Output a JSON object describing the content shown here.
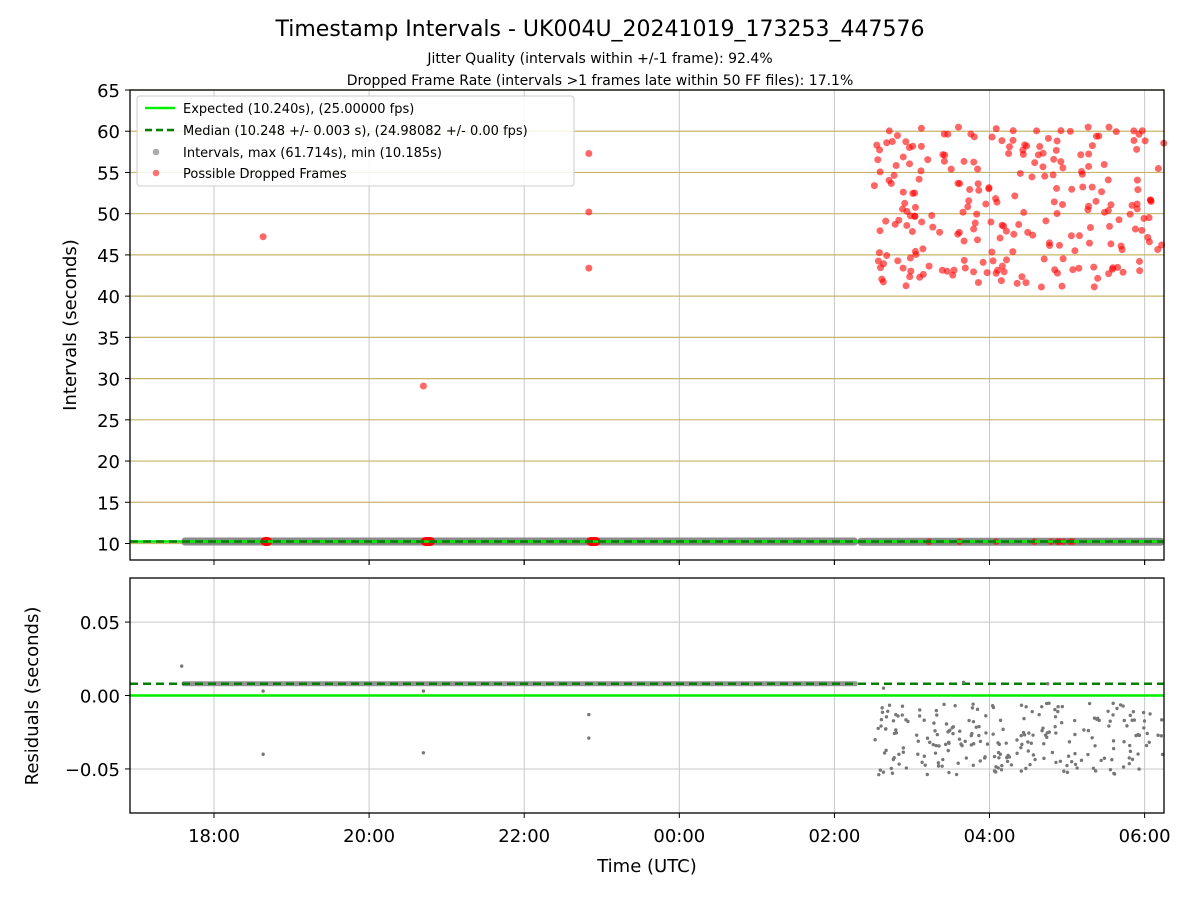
{
  "chart_data": [
    {
      "type": "scatter",
      "title": "Timestamp Intervals - UK004U_20241019_173253_447576",
      "subtitle_lines": [
        "Jitter Quality (intervals within +/-1 frame): 92.4%",
        "Dropped Frame Rate (intervals >1 frames late within 50 FF files): 17.1%"
      ],
      "xlabel": "",
      "ylabel": "Intervals (seconds)",
      "x_axis": "time_utc",
      "xlim": [
        "2024-10-19 16:55",
        "2024-10-20 06:15"
      ],
      "ylim": [
        8,
        65
      ],
      "yticks": [
        10,
        15,
        20,
        25,
        30,
        35,
        40,
        45,
        50,
        55,
        60,
        65
      ],
      "ytick_labels": [
        "10",
        "15",
        "20",
        "25",
        "30",
        "35",
        "40",
        "45",
        "50",
        "55",
        "60",
        "65"
      ],
      "xticks": [
        "2024-10-19 18:00",
        "2024-10-19 20:00",
        "2024-10-19 22:00",
        "2024-10-20 00:00",
        "2024-10-20 02:00",
        "2024-10-20 04:00",
        "2024-10-20 06:00"
      ],
      "horizontal_grid_color": "#c8b46a",
      "legend": {
        "placement": "upper-left",
        "entries": [
          "Expected (10.240s), (25.00000 fps)",
          "Median (10.248 +/- 0.003 s), (24.98082 +/- 0.00 fps)",
          "Intervals, max (61.714s), min (10.185s)",
          "Possible Dropped Frames"
        ]
      },
      "series": [
        {
          "label": "Expected (10.240s), (25.00000 fps)",
          "kind": "hline",
          "y": 10.24,
          "color": "#00ee00",
          "style": "solid"
        },
        {
          "label": "Median (10.248 +/- 0.003 s), (24.98082 +/- 0.00 fps)",
          "kind": "hline",
          "y": 10.248,
          "color": "#008000",
          "style": "dashed"
        },
        {
          "label": "Intervals, max (61.714s), min (10.185s)",
          "kind": "band",
          "color": "#777777",
          "segments": [
            {
              "x_start": "2024-10-19 17:35",
              "x_end": "2024-10-20 02:18",
              "y": 10.25
            },
            {
              "x_start": "2024-10-20 02:18",
              "x_end": "2024-10-20 06:15",
              "y": 10.22
            }
          ]
        },
        {
          "label": "Possible Dropped Frames",
          "kind": "points",
          "color": "#ff0000",
          "x": [
            "2024-10-19 18:38",
            "2024-10-19 20:42",
            "2024-10-19 22:50",
            "2024-10-19 22:50",
            "2024-10-19 22:50"
          ],
          "y": [
            47.2,
            29.1,
            57.3,
            50.2,
            43.4
          ],
          "dense_cluster": {
            "x_start": "2024-10-20 02:30",
            "x_end": "2024-10-20 06:15",
            "y_min": 39.6,
            "y_max": 61.7
          },
          "near_baseline_clusters": [
            {
              "x_start": "2024-10-19 18:36",
              "x_end": "2024-10-19 18:45",
              "y": 10.25
            },
            {
              "x_start": "2024-10-19 20:40",
              "x_end": "2024-10-19 20:51",
              "y": 10.25
            },
            {
              "x_start": "2024-10-19 22:48",
              "x_end": "2024-10-19 22:59",
              "y": 10.25
            }
          ]
        }
      ]
    },
    {
      "type": "scatter",
      "title": "",
      "xlabel": "Time (UTC)",
      "ylabel": "Residuals (seconds)",
      "x_axis": "time_utc",
      "xlim": [
        "2024-10-19 16:55",
        "2024-10-20 06:15"
      ],
      "ylim": [
        -0.08,
        0.08
      ],
      "yticks": [
        0.05,
        0.0,
        -0.05
      ],
      "ytick_labels": [
        "0.05",
        "0.00",
        "−0.05"
      ],
      "xticks": [
        "2024-10-19 18:00",
        "2024-10-19 20:00",
        "2024-10-19 22:00",
        "2024-10-20 00:00",
        "2024-10-20 02:00",
        "2024-10-20 04:00",
        "2024-10-20 06:00"
      ],
      "xtick_labels": [
        "18:00",
        "20:00",
        "22:00",
        "00:00",
        "02:00",
        "04:00",
        "06:00"
      ],
      "series": [
        {
          "name": "",
          "kind": "hline",
          "y": 0.0,
          "color": "#00ee00",
          "style": "solid"
        },
        {
          "name": "",
          "kind": "hline",
          "y": 0.008,
          "color": "#008000",
          "style": "dashed"
        },
        {
          "name": "",
          "kind": "points",
          "color": "#777777",
          "band": {
            "x_start": "2024-10-19 17:35",
            "x_end": "2024-10-20 02:18",
            "y": 0.008
          },
          "x": [
            "2024-10-19 17:35",
            "2024-10-19 18:38",
            "2024-10-19 18:38",
            "2024-10-19 20:42",
            "2024-10-19 20:42",
            "2024-10-19 22:50",
            "2024-10-19 22:50",
            "2024-10-20 02:38",
            "2024-10-20 03:40",
            "2024-10-20 04:45"
          ],
          "y": [
            0.02,
            0.003,
            -0.04,
            -0.039,
            0.003,
            -0.013,
            -0.029,
            0.005,
            0.009,
            0.008
          ],
          "dense_cluster": {
            "x_start": "2024-10-20 02:30",
            "x_end": "2024-10-20 06:15",
            "y_min": -0.054,
            "y_max": -0.005
          }
        }
      ]
    }
  ]
}
